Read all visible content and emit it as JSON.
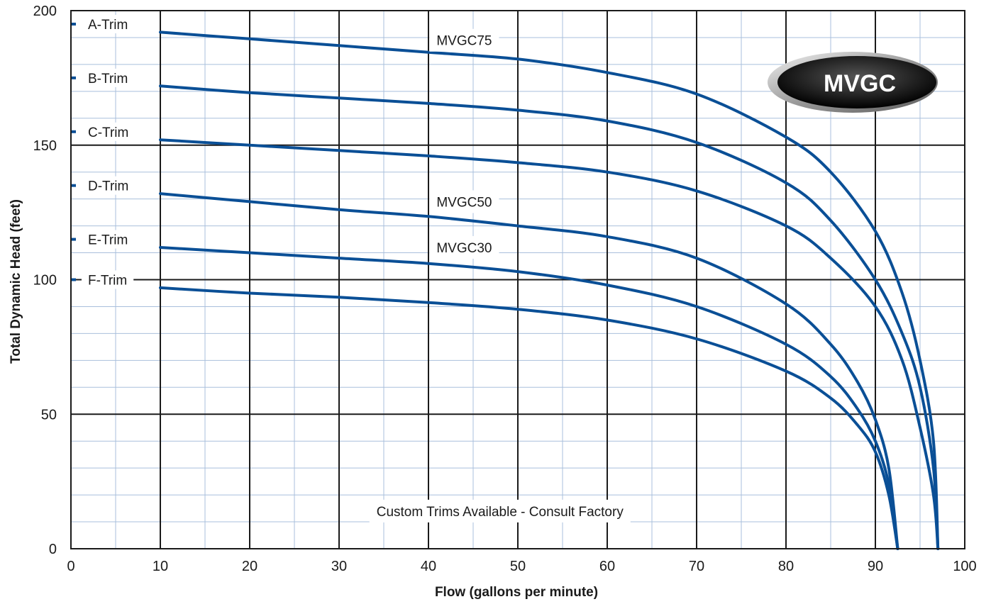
{
  "chart_data": {
    "type": "line",
    "xlabel": "Flow (gallons per minute)",
    "ylabel": "Total Dynamic Head (feet)",
    "xlim": [
      0,
      100
    ],
    "ylim": [
      0,
      200
    ],
    "x_ticks": [
      "0",
      "10",
      "20",
      "30",
      "40",
      "50",
      "60",
      "70",
      "80",
      "90",
      "100"
    ],
    "y_ticks": [
      "0",
      "50",
      "100",
      "150",
      "200"
    ],
    "grid": true,
    "series": [
      {
        "name": "A-Trim",
        "label_y": 195,
        "x": [
          10,
          20,
          30,
          40,
          50,
          60,
          70,
          80,
          85,
          90,
          93,
          95,
          96.5,
          97
        ],
        "y": [
          192,
          189.5,
          187,
          184.5,
          182,
          177,
          169,
          153,
          140,
          118,
          95,
          70,
          40,
          0
        ]
      },
      {
        "name": "B-Trim",
        "label_y": 175,
        "x": [
          10,
          20,
          30,
          40,
          50,
          60,
          70,
          80,
          85,
          90,
          93,
          95,
          96.5,
          97
        ],
        "y": [
          172,
          169.5,
          167.5,
          165.5,
          163,
          159,
          151,
          136,
          122,
          100,
          80,
          60,
          30,
          0
        ]
      },
      {
        "name": "C-Trim",
        "label_y": 155,
        "x": [
          10,
          20,
          30,
          40,
          50,
          60,
          70,
          80,
          85,
          90,
          93,
          95,
          96.5,
          97
        ],
        "y": [
          152,
          150,
          148,
          146,
          143.5,
          140,
          133,
          120,
          108,
          90,
          70,
          45,
          20,
          0
        ]
      },
      {
        "name": "D-Trim",
        "label_y": 135,
        "x": [
          10,
          20,
          30,
          40,
          50,
          60,
          70,
          80,
          85,
          88,
          90,
          91.5,
          92.5
        ],
        "y": [
          132,
          129,
          126,
          123.5,
          120,
          116,
          108,
          91,
          76,
          62,
          48,
          30,
          0
        ]
      },
      {
        "name": "E-Trim",
        "label_y": 115,
        "x": [
          10,
          20,
          30,
          40,
          50,
          60,
          70,
          80,
          85,
          88,
          90,
          91.5,
          92.5
        ],
        "y": [
          112,
          110,
          108,
          106,
          103,
          98,
          90,
          76,
          64,
          52,
          40,
          24,
          0
        ]
      },
      {
        "name": "F-Trim",
        "label_y": 100,
        "x": [
          10,
          20,
          30,
          40,
          50,
          60,
          70,
          80,
          85,
          88,
          90,
          91.5,
          92.5
        ],
        "y": [
          97,
          95,
          93.5,
          91.5,
          89,
          85,
          78,
          66,
          56,
          46,
          36,
          20,
          0
        ]
      }
    ],
    "annotations": [
      {
        "text": "MVGC75",
        "x": 44,
        "y": 189
      },
      {
        "text": "MVGC50",
        "x": 44,
        "y": 129
      },
      {
        "text": "MVGC30",
        "x": 44,
        "y": 112
      },
      {
        "text": "Custom Trims Available - Consult Factory",
        "x": 48,
        "y": 14
      }
    ],
    "logo": {
      "text": "MVGC"
    },
    "line_color": "#0a4f96",
    "grid_major_color": "#1a1a1a",
    "grid_minor_color": "#a9bfdc"
  }
}
